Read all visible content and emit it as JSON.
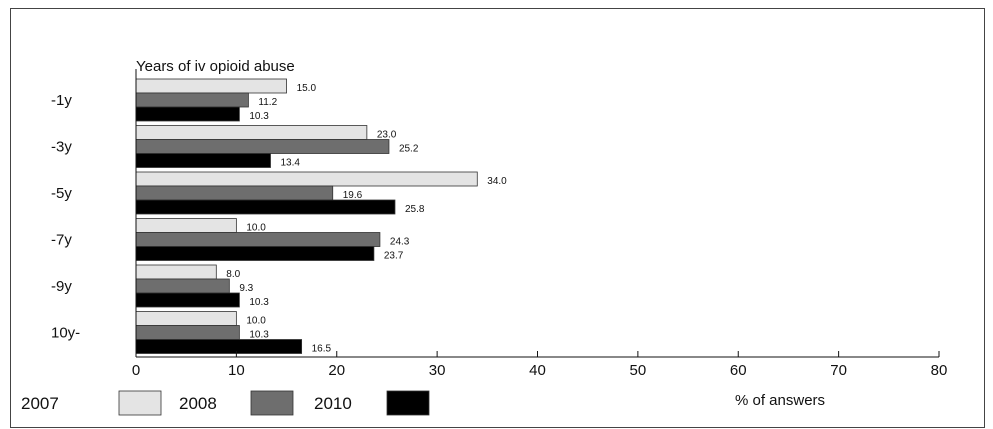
{
  "chart_data": {
    "type": "bar",
    "orientation": "horizontal",
    "title": "Years of iv opioid abuse",
    "xlabel": "% of answers",
    "xlim": [
      0,
      80
    ],
    "x_ticks": [
      "0",
      "10",
      "20",
      "30",
      "40",
      "50",
      "60",
      "70",
      "80"
    ],
    "categories": [
      "-1y",
      "-3y",
      "-5y",
      "-7y",
      "-9y",
      "10y-"
    ],
    "series": [
      {
        "name": "2007",
        "color": "#e4e4e4",
        "values": [
          15.0,
          23.0,
          34.0,
          10.0,
          8.0,
          10.0
        ],
        "labels": [
          "15.0",
          "23.0",
          "34.0",
          "10.0",
          "8.0",
          "10.0"
        ]
      },
      {
        "name": "2008",
        "color": "#6e6e6e",
        "values": [
          11.2,
          25.2,
          19.6,
          24.3,
          9.3,
          10.3
        ],
        "labels": [
          "11.2",
          "25.2",
          "19.6",
          "24.3",
          "9.3",
          "10.3"
        ]
      },
      {
        "name": "2010",
        "color": "#000000",
        "values": [
          10.3,
          13.4,
          25.8,
          23.7,
          10.3,
          16.5
        ],
        "labels": [
          "10.3",
          "13.4",
          "25.8",
          "23.7",
          "10.3",
          "16.5"
        ]
      }
    ],
    "grid": false,
    "legend_position": "bottom-left"
  }
}
